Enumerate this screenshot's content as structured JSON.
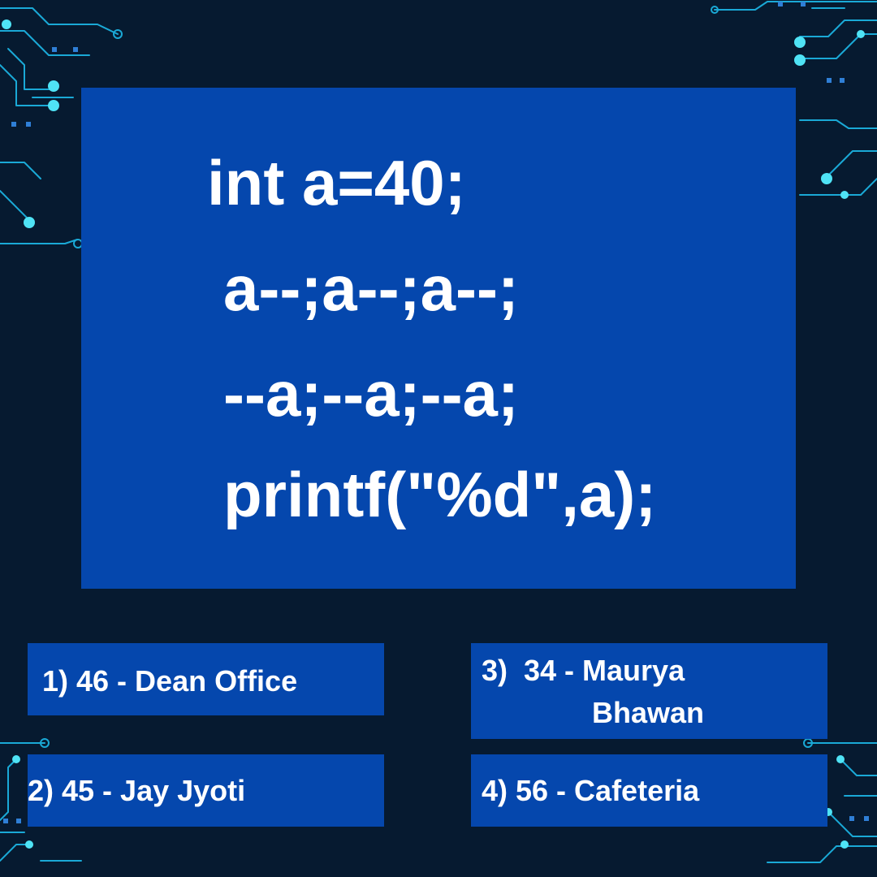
{
  "question": {
    "code_lines": [
      "int a=40;",
      "a--;a--;a--;",
      "--a;--a;--a;",
      "printf(\"%d\",a);"
    ]
  },
  "options": [
    {
      "text": "1) 46 - Dean Office"
    },
    {
      "line1": "3)  34 - Maurya",
      "line2": "Bhawan"
    },
    {
      "text": "2) 45 - Jay Jyoti"
    },
    {
      "text": "4) 56 - Cafeteria"
    }
  ],
  "colors": {
    "background": "#061a30",
    "panel": "#0547ad",
    "text": "#ffffff",
    "circuit": "#1aa9d6",
    "circuit_glow": "#4fe3f5"
  }
}
